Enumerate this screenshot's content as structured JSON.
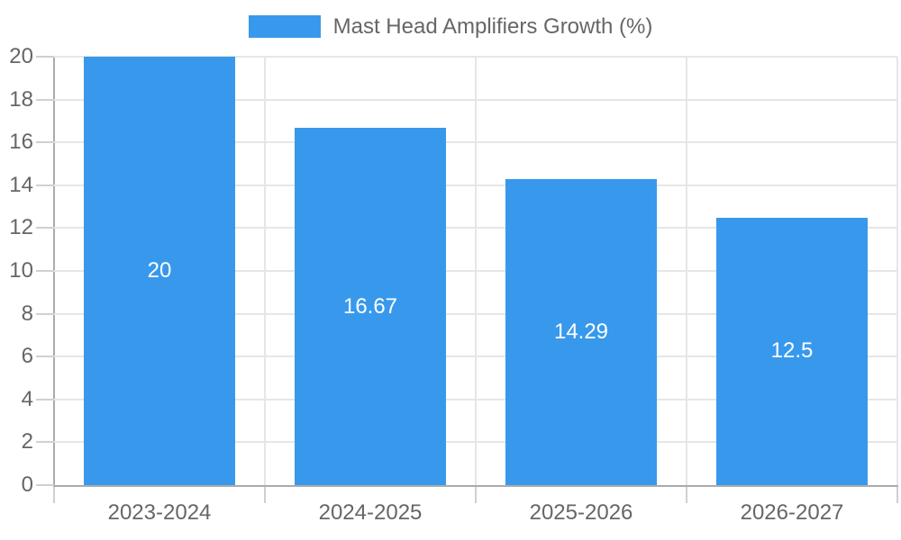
{
  "chart_data": {
    "type": "bar",
    "title": "Mast Head Amplifiers Growth (%)",
    "categories": [
      "2023-2024",
      "2024-2025",
      "2025-2026",
      "2026-2027"
    ],
    "values": [
      20,
      16.67,
      14.29,
      12.5
    ],
    "value_labels": [
      "20",
      "16.67",
      "14.29",
      "12.5"
    ],
    "xlabel": "",
    "ylabel": "",
    "ylim": [
      0,
      20
    ],
    "ytick_step": 2,
    "yticks": [
      0,
      2,
      4,
      6,
      8,
      10,
      12,
      14,
      16,
      18,
      20
    ],
    "grid": true,
    "legend_position": "top",
    "colors": {
      "bar": "#3899EC",
      "bar_label": "#FFFFFF",
      "axis_text": "#666666",
      "grid_line": "#E6E6E6",
      "axis_line": "#AAAAAA",
      "tick_mark": "#D0D0D0",
      "background": "#FFFFFF"
    }
  }
}
